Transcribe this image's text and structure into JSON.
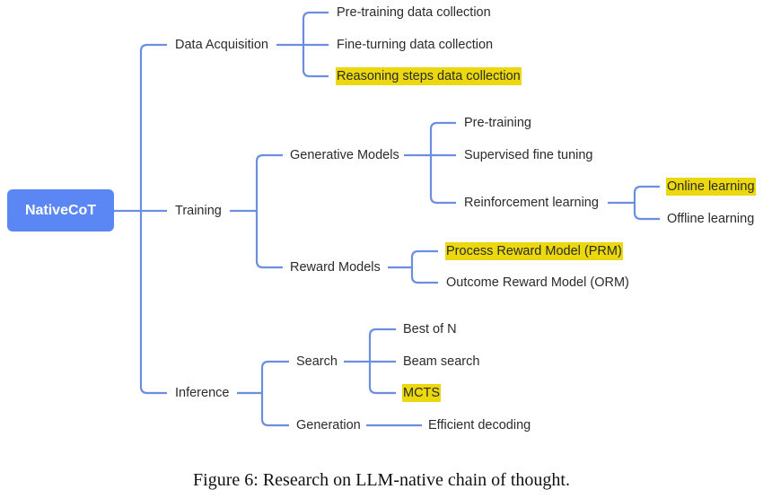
{
  "root": "NativeCoT",
  "colors": {
    "root_fill": "#5b87f5",
    "connector": "#6b8fe0",
    "highlight": "#ecd80e"
  },
  "nodes": {
    "data_acquisition": "Data Acquisition",
    "pretraining_data": "Pre-training data collection",
    "finetuning_data": "Fine-turning data collection",
    "reasoning_data": "Reasoning steps data collection",
    "training": "Training",
    "generative_models": "Generative Models",
    "pretraining": "Pre-training",
    "sft": "Supervised fine tuning",
    "rl": "Reinforcement learning",
    "online": "Online learning",
    "offline": "Offline learning",
    "reward_models": "Reward Models",
    "prm": "Process Reward Model (PRM)",
    "orm": "Outcome Reward Model (ORM)",
    "inference": "Inference",
    "search": "Search",
    "best_of_n": "Best of N",
    "beam_search": "Beam search",
    "mcts": "MCTS",
    "generation": "Generation",
    "efficient_decoding": "Efficient decoding"
  },
  "highlighted": [
    "reasoning_data",
    "online",
    "prm",
    "mcts"
  ],
  "caption": "Figure 6: Research on LLM-native chain of thought."
}
